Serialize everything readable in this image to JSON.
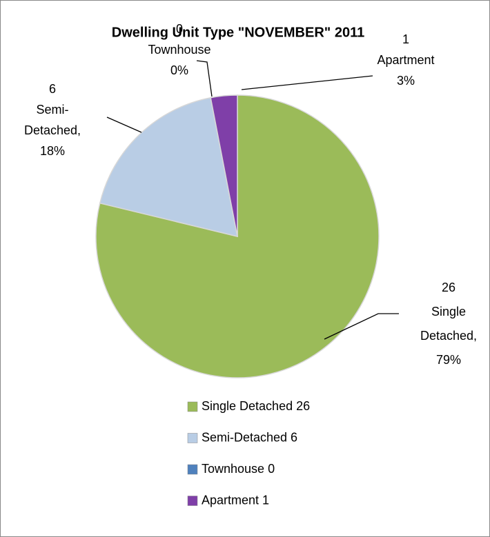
{
  "chart_data": {
    "type": "pie",
    "title": "Dwelling Unit Type \"NOVEMBER\"  2011",
    "categories": [
      "Single Detached 26",
      "Semi-Detached 6",
      "Townhouse 0",
      "Apartment 1"
    ],
    "values": [
      26,
      6,
      0,
      1
    ],
    "label_lines": [
      [
        "Single",
        "Detached,"
      ],
      [
        "Semi-",
        "Detached,"
      ],
      [
        "Townhouse"
      ],
      [
        "Apartment"
      ]
    ],
    "percents": [
      79,
      18,
      0,
      3
    ],
    "percent_labels": [
      "79%",
      "18%",
      "0%",
      "3%"
    ],
    "colors": [
      "#9bbb59",
      "#b9cde5",
      "#4f81bd",
      "#7f3fa8"
    ],
    "legend": "bottom"
  }
}
